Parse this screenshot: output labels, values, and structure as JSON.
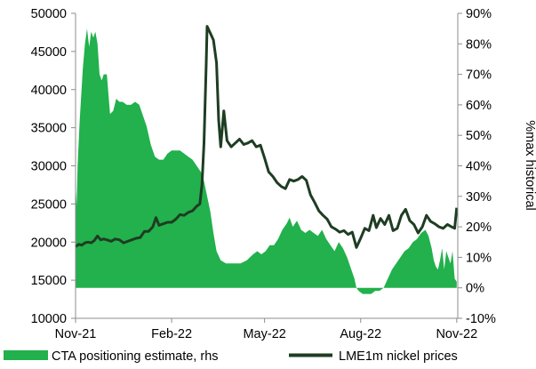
{
  "chart_data": {
    "type": "area+line",
    "title": "",
    "xlabel": "",
    "ylabel_left": "",
    "ylabel_right": "%max historical",
    "x_tick_labels": [
      "Nov-21",
      "Feb-22",
      "May-22",
      "Aug-22",
      "Nov-22"
    ],
    "x_tick_dates": [
      "2021-11-01",
      "2022-02-01",
      "2022-05-01",
      "2022-08-01",
      "2022-11-01"
    ],
    "x_range": [
      "2021-11-01",
      "2022-11-02"
    ],
    "y_left": {
      "min": 10000,
      "max": 50000,
      "step": 5000,
      "ticks": [
        "10000",
        "15000",
        "20000",
        "25000",
        "30000",
        "35000",
        "40000",
        "45000",
        "50000"
      ]
    },
    "y_right": {
      "min": -10,
      "max": 90,
      "step": 10,
      "ticks": [
        "-10%",
        "0%",
        "10%",
        "20%",
        "30%",
        "40%",
        "50%",
        "60%",
        "70%",
        "80%",
        "90%"
      ]
    },
    "grid": false,
    "legend_position": "bottom",
    "series": [
      {
        "name": "CTA positioning estimate, rhs",
        "kind": "area",
        "axis": "right",
        "color": "#22b14c",
        "points": [
          [
            "2021-11-01",
            0
          ],
          [
            "2021-11-01",
            35
          ],
          [
            "2021-11-02",
            27
          ],
          [
            "2021-11-03",
            40
          ],
          [
            "2021-11-05",
            55
          ],
          [
            "2021-11-08",
            72
          ],
          [
            "2021-11-10",
            80
          ],
          [
            "2021-11-12",
            85
          ],
          [
            "2021-11-14",
            79
          ],
          [
            "2021-11-16",
            84
          ],
          [
            "2021-11-18",
            82
          ],
          [
            "2021-11-20",
            84
          ],
          [
            "2021-11-22",
            80
          ],
          [
            "2021-11-24",
            70
          ],
          [
            "2021-11-26",
            68
          ],
          [
            "2021-11-28",
            70
          ],
          [
            "2021-12-01",
            70
          ],
          [
            "2021-12-04",
            57
          ],
          [
            "2021-12-07",
            58
          ],
          [
            "2021-12-10",
            62
          ],
          [
            "2021-12-13",
            61
          ],
          [
            "2021-12-16",
            61
          ],
          [
            "2021-12-20",
            60
          ],
          [
            "2021-12-24",
            60
          ],
          [
            "2021-12-28",
            61
          ],
          [
            "2022-01-01",
            60
          ],
          [
            "2022-01-04",
            57
          ],
          [
            "2022-01-08",
            53
          ],
          [
            "2022-01-12",
            47
          ],
          [
            "2022-01-16",
            43
          ],
          [
            "2022-01-20",
            42
          ],
          [
            "2022-01-24",
            42
          ],
          [
            "2022-01-28",
            44
          ],
          [
            "2022-02-01",
            45
          ],
          [
            "2022-02-05",
            45
          ],
          [
            "2022-02-09",
            45
          ],
          [
            "2022-02-13",
            44
          ],
          [
            "2022-02-17",
            43
          ],
          [
            "2022-02-21",
            42
          ],
          [
            "2022-02-25",
            40
          ],
          [
            "2022-03-01",
            38
          ],
          [
            "2022-03-04",
            35
          ],
          [
            "2022-03-07",
            30
          ],
          [
            "2022-03-10",
            25
          ],
          [
            "2022-03-13",
            18
          ],
          [
            "2022-03-16",
            12
          ],
          [
            "2022-03-20",
            9
          ],
          [
            "2022-03-25",
            8
          ],
          [
            "2022-04-01",
            8
          ],
          [
            "2022-04-08",
            8
          ],
          [
            "2022-04-14",
            9
          ],
          [
            "2022-04-20",
            11
          ],
          [
            "2022-04-24",
            12
          ],
          [
            "2022-04-28",
            11
          ],
          [
            "2022-05-02",
            12
          ],
          [
            "2022-05-06",
            14
          ],
          [
            "2022-05-10",
            14
          ],
          [
            "2022-05-14",
            16
          ],
          [
            "2022-05-18",
            19
          ],
          [
            "2022-05-22",
            21
          ],
          [
            "2022-05-25",
            23
          ],
          [
            "2022-05-28",
            20
          ],
          [
            "2022-06-01",
            22
          ],
          [
            "2022-06-05",
            19
          ],
          [
            "2022-06-09",
            18
          ],
          [
            "2022-06-13",
            19
          ],
          [
            "2022-06-17",
            18
          ],
          [
            "2022-06-21",
            17
          ],
          [
            "2022-06-25",
            19
          ],
          [
            "2022-06-29",
            16
          ],
          [
            "2022-07-03",
            14
          ],
          [
            "2022-07-07",
            12
          ],
          [
            "2022-07-11",
            15
          ],
          [
            "2022-07-15",
            13
          ],
          [
            "2022-07-19",
            10
          ],
          [
            "2022-07-23",
            6
          ],
          [
            "2022-07-26",
            3
          ],
          [
            "2022-07-28",
            0
          ],
          [
            "2022-07-30",
            -1
          ],
          [
            "2022-08-03",
            -2
          ],
          [
            "2022-08-07",
            -2
          ],
          [
            "2022-08-11",
            -2
          ],
          [
            "2022-08-15",
            -1
          ],
          [
            "2022-08-19",
            -1
          ],
          [
            "2022-08-23",
            0
          ],
          [
            "2022-08-27",
            3
          ],
          [
            "2022-08-31",
            6
          ],
          [
            "2022-09-04",
            8
          ],
          [
            "2022-09-08",
            10
          ],
          [
            "2022-09-12",
            12
          ],
          [
            "2022-09-16",
            13
          ],
          [
            "2022-09-20",
            15
          ],
          [
            "2022-09-24",
            16
          ],
          [
            "2022-09-28",
            18
          ],
          [
            "2022-10-02",
            19
          ],
          [
            "2022-10-05",
            17
          ],
          [
            "2022-10-08",
            13
          ],
          [
            "2022-10-10",
            9
          ],
          [
            "2022-10-12",
            7
          ],
          [
            "2022-10-14",
            6
          ],
          [
            "2022-10-16",
            9
          ],
          [
            "2022-10-18",
            13
          ],
          [
            "2022-10-20",
            6
          ],
          [
            "2022-10-22",
            12
          ],
          [
            "2022-10-24",
            10
          ],
          [
            "2022-10-26",
            8
          ],
          [
            "2022-10-28",
            12
          ],
          [
            "2022-10-30",
            3
          ],
          [
            "2022-11-01",
            2
          ],
          [
            "2022-11-01",
            0
          ]
        ]
      },
      {
        "name": "LME1m nickel prices",
        "kind": "line",
        "axis": "left",
        "color": "#1e3d22",
        "points": [
          [
            "2021-11-01",
            19400
          ],
          [
            "2021-11-04",
            19700
          ],
          [
            "2021-11-07",
            19600
          ],
          [
            "2021-11-10",
            19900
          ],
          [
            "2021-11-13",
            20000
          ],
          [
            "2021-11-16",
            19900
          ],
          [
            "2021-11-19",
            20200
          ],
          [
            "2021-11-22",
            20800
          ],
          [
            "2021-11-25",
            20300
          ],
          [
            "2021-11-28",
            20400
          ],
          [
            "2021-12-01",
            20300
          ],
          [
            "2021-12-05",
            20100
          ],
          [
            "2021-12-09",
            20400
          ],
          [
            "2021-12-13",
            20300
          ],
          [
            "2021-12-17",
            19900
          ],
          [
            "2021-12-21",
            20100
          ],
          [
            "2021-12-25",
            20300
          ],
          [
            "2021-12-29",
            20500
          ],
          [
            "2022-01-02",
            20600
          ],
          [
            "2022-01-06",
            21400
          ],
          [
            "2022-01-10",
            21400
          ],
          [
            "2022-01-14",
            22000
          ],
          [
            "2022-01-17",
            23200
          ],
          [
            "2022-01-20",
            22200
          ],
          [
            "2022-01-24",
            22400
          ],
          [
            "2022-01-28",
            22600
          ],
          [
            "2022-02-01",
            22600
          ],
          [
            "2022-02-05",
            23000
          ],
          [
            "2022-02-09",
            23600
          ],
          [
            "2022-02-13",
            23500
          ],
          [
            "2022-02-17",
            23900
          ],
          [
            "2022-02-21",
            24100
          ],
          [
            "2022-02-25",
            24700
          ],
          [
            "2022-02-28",
            25000
          ],
          [
            "2022-03-02",
            27500
          ],
          [
            "2022-03-04",
            33000
          ],
          [
            "2022-03-06",
            43000
          ],
          [
            "2022-03-07",
            48300
          ],
          [
            "2022-03-10",
            47400
          ],
          [
            "2022-03-13",
            46500
          ],
          [
            "2022-03-16",
            43500
          ],
          [
            "2022-03-18",
            36000
          ],
          [
            "2022-03-20",
            32500
          ],
          [
            "2022-03-23",
            37200
          ],
          [
            "2022-03-26",
            33300
          ],
          [
            "2022-03-30",
            32500
          ],
          [
            "2022-04-03",
            33000
          ],
          [
            "2022-04-07",
            33500
          ],
          [
            "2022-04-11",
            32800
          ],
          [
            "2022-04-15",
            33000
          ],
          [
            "2022-04-19",
            33300
          ],
          [
            "2022-04-23",
            32500
          ],
          [
            "2022-04-27",
            32700
          ],
          [
            "2022-05-01",
            31000
          ],
          [
            "2022-05-05",
            29200
          ],
          [
            "2022-05-09",
            28600
          ],
          [
            "2022-05-13",
            27800
          ],
          [
            "2022-05-17",
            27300
          ],
          [
            "2022-05-21",
            27000
          ],
          [
            "2022-05-25",
            28200
          ],
          [
            "2022-05-29",
            28000
          ],
          [
            "2022-06-02",
            28200
          ],
          [
            "2022-06-06",
            28600
          ],
          [
            "2022-06-10",
            28100
          ],
          [
            "2022-06-14",
            26200
          ],
          [
            "2022-06-18",
            25200
          ],
          [
            "2022-06-22",
            24100
          ],
          [
            "2022-06-26",
            23500
          ],
          [
            "2022-06-30",
            23000
          ],
          [
            "2022-07-04",
            22000
          ],
          [
            "2022-07-08",
            21700
          ],
          [
            "2022-07-12",
            21300
          ],
          [
            "2022-07-16",
            21500
          ],
          [
            "2022-07-20",
            21000
          ],
          [
            "2022-07-24",
            21300
          ],
          [
            "2022-07-28",
            19300
          ],
          [
            "2022-08-01",
            20500
          ],
          [
            "2022-08-05",
            21800
          ],
          [
            "2022-08-09",
            21500
          ],
          [
            "2022-08-13",
            23500
          ],
          [
            "2022-08-16",
            21900
          ],
          [
            "2022-08-20",
            23100
          ],
          [
            "2022-08-24",
            22300
          ],
          [
            "2022-08-28",
            23500
          ],
          [
            "2022-09-01",
            21500
          ],
          [
            "2022-09-05",
            21800
          ],
          [
            "2022-09-09",
            23500
          ],
          [
            "2022-09-13",
            24300
          ],
          [
            "2022-09-17",
            22800
          ],
          [
            "2022-09-21",
            22300
          ],
          [
            "2022-09-25",
            21200
          ],
          [
            "2022-09-29",
            22000
          ],
          [
            "2022-10-03",
            23500
          ],
          [
            "2022-10-07",
            22700
          ],
          [
            "2022-10-11",
            22400
          ],
          [
            "2022-10-15",
            22000
          ],
          [
            "2022-10-19",
            21800
          ],
          [
            "2022-10-23",
            22300
          ],
          [
            "2022-10-27",
            22000
          ],
          [
            "2022-10-30",
            21800
          ],
          [
            "2022-11-01",
            24500
          ]
        ]
      }
    ]
  }
}
